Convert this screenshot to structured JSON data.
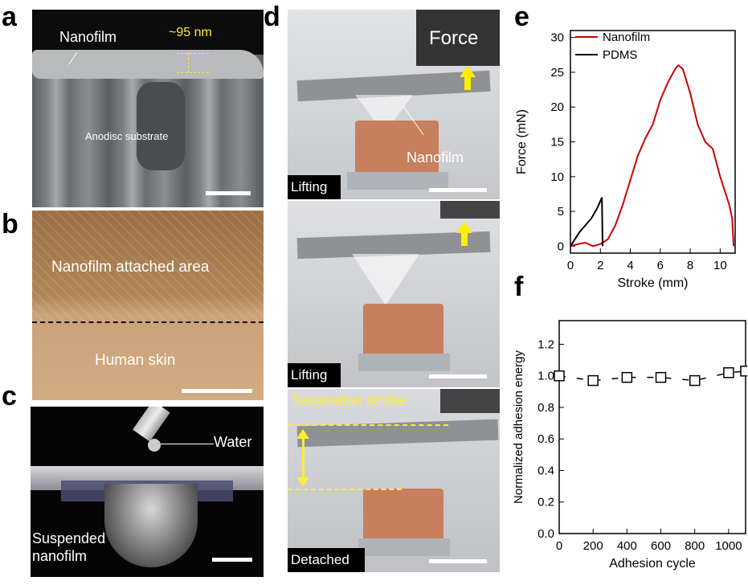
{
  "panel_labels": {
    "a": "a",
    "b": "b",
    "c": "c",
    "d": "d",
    "e": "e",
    "f": "f"
  },
  "panel_a": {
    "film_label": "Nanofilm",
    "thickness": "~95 nm",
    "substrate": "Anodisc substrate"
  },
  "panel_b": {
    "top_label": "Nanofilm attached area",
    "bottom_label": "Human skin"
  },
  "panel_c": {
    "drop_label": "Water",
    "film_label_line1": "Suspended",
    "film_label_line2": "nanofilm"
  },
  "panel_d": {
    "force_label": "Force",
    "film_label": "Nanofilm",
    "frame1_state": "Lifting",
    "frame2_state": "Lifting",
    "stroke_label": "Separation stroke",
    "frame3_state": "Detached"
  },
  "chart_data": [
    {
      "type": "line",
      "title": "",
      "xlabel": "Stroke (mm)",
      "ylabel": "Force (mN)",
      "xlim": [
        0,
        11
      ],
      "ylim": [
        -1,
        31
      ],
      "xticks": [
        0,
        2,
        4,
        6,
        8,
        10
      ],
      "yticks": [
        0,
        5,
        10,
        15,
        20,
        25,
        30
      ],
      "legend_position": "top-left",
      "colors": {
        "Nanofilm": "#cc0000",
        "PDMS": "#000000"
      },
      "series": [
        {
          "name": "Nanofilm",
          "x": [
            0,
            0.5,
            1,
            1.5,
            2,
            2.5,
            3,
            3.5,
            4,
            4.5,
            5,
            5.5,
            6,
            6.5,
            7,
            7.2,
            7.5,
            8,
            8.5,
            9,
            9.5,
            10,
            10.3,
            10.6,
            10.8,
            10.85,
            10.9
          ],
          "y": [
            0,
            0.3,
            0.5,
            0,
            0.3,
            1,
            3,
            6,
            9.5,
            13,
            15.5,
            17.5,
            21,
            23.5,
            25.5,
            26,
            25.5,
            22,
            17.5,
            15,
            14,
            10,
            8,
            6,
            4,
            2,
            0
          ]
        },
        {
          "name": "PDMS",
          "x": [
            0,
            0.3,
            0.6,
            1,
            1.4,
            1.8,
            2,
            2.1,
            2.15
          ],
          "y": [
            0,
            1,
            2,
            3,
            4,
            5.5,
            6.5,
            7,
            0
          ]
        }
      ]
    },
    {
      "type": "scatter",
      "title": "",
      "xlabel": "Adhesion cycle",
      "ylabel": "Normalized adhesion energy",
      "xlim": [
        0,
        1100
      ],
      "ylim": [
        0,
        1.35
      ],
      "xticks": [
        0,
        200,
        400,
        600,
        800,
        1000
      ],
      "yticks": [
        0.0,
        0.2,
        0.4,
        0.6,
        0.8,
        1.0,
        1.2
      ],
      "ytick_labels": [
        "0.0",
        "0.2",
        "0.4",
        "0.6",
        "0.8",
        "1.0",
        "1.2"
      ],
      "series": [
        {
          "name": "Normalized adhesion energy",
          "x": [
            0,
            200,
            400,
            600,
            800,
            1000,
            1100
          ],
          "y": [
            1.0,
            0.97,
            0.99,
            0.99,
            0.97,
            1.02,
            1.03
          ]
        }
      ]
    }
  ]
}
